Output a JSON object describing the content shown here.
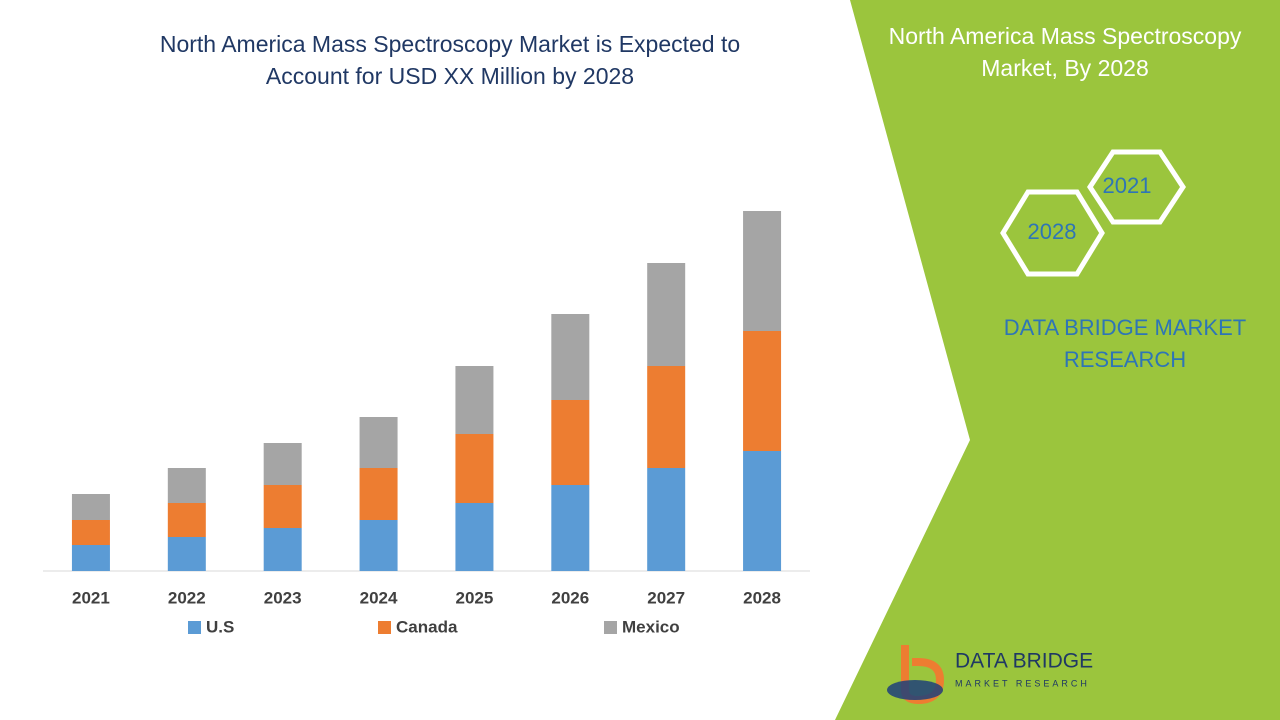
{
  "chart_data": {
    "type": "stacked_bar",
    "title": "North America Mass Spectroscopy Market is Expected to Account for USD XX Million by 2028",
    "categories": [
      "2021",
      "2022",
      "2023",
      "2024",
      "2025",
      "2026",
      "2027",
      "2028"
    ],
    "series": [
      {
        "name": "U.S",
        "color": "#5b9bd5",
        "values": [
          26,
          34,
          43,
          51,
          68,
          86,
          103,
          120
        ]
      },
      {
        "name": "Canada",
        "color": "#ed7d31",
        "values": [
          25,
          34,
          43,
          52,
          69,
          85,
          102,
          120
        ]
      },
      {
        "name": "Mexico",
        "color": "#a5a5a5",
        "values": [
          26,
          35,
          42,
          51,
          68,
          86,
          103,
          120
        ]
      }
    ]
  },
  "side_panel": {
    "title": "North America Mass Spectroscopy Market, By 2028",
    "hex_labels": [
      "2021",
      "2028"
    ],
    "brand": "DATA BRIDGE MARKET RESEARCH",
    "logo": {
      "name": "DATA BRIDGE",
      "tagline": "MARKET RESEARCH"
    }
  }
}
